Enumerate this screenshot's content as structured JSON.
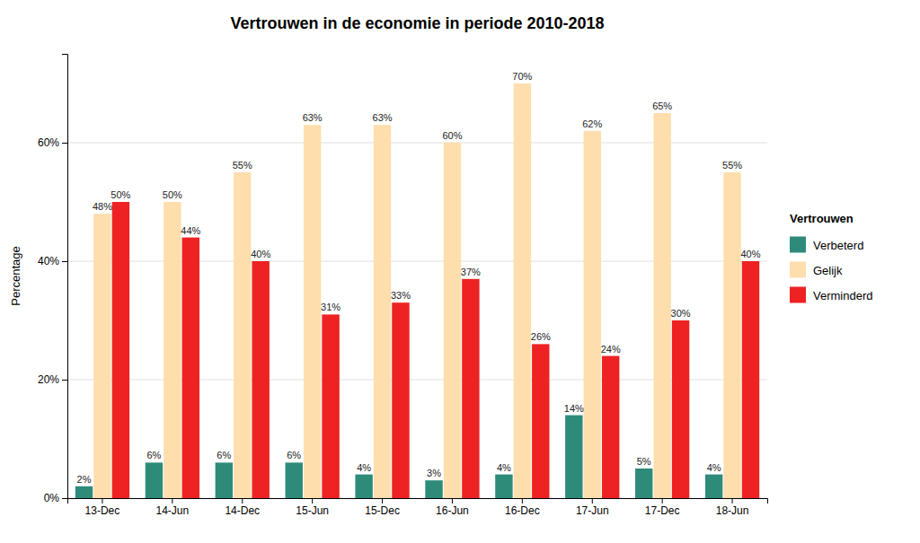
{
  "chart_data": {
    "type": "bar",
    "title": "Vertrouwen in de economie in periode 2010-2018",
    "y_label": "Percentage",
    "categories": [
      "13-Dec",
      "14-Jun",
      "14-Dec",
      "15-Jun",
      "15-Dec",
      "16-Jun",
      "16-Dec",
      "17-Jun",
      "17-Dec",
      "18-Jun"
    ],
    "series": [
      {
        "name": "Verbeterd",
        "color": "#2E8B7A",
        "values": [
          2,
          6,
          6,
          6,
          4,
          3,
          4,
          14,
          5,
          4
        ],
        "value_labels": [
          "2%",
          "6%",
          "6%",
          "6%",
          "4%",
          "3%",
          "4%",
          "14%",
          "5%",
          "4%"
        ]
      },
      {
        "name": "Gelijk",
        "color": "#FFDEAD",
        "values": [
          48,
          50,
          55,
          63,
          63,
          60,
          70,
          62,
          65,
          55
        ],
        "value_labels": [
          "48%",
          "50%",
          "55%",
          "63%",
          "63%",
          "60%",
          "70%",
          "62%",
          "65%",
          "55%"
        ]
      },
      {
        "name": "Verminderd",
        "color": "#EE2222",
        "values": [
          50,
          44,
          40,
          31,
          33,
          37,
          26,
          24,
          30,
          40
        ],
        "value_labels": [
          "50%",
          "44%",
          "40%",
          "31%",
          "33%",
          "37%",
          "26%",
          "24%",
          "30%",
          "40%"
        ]
      }
    ],
    "legend_title": "Vertrouwen",
    "ylim": [
      0,
      75
    ],
    "yticks": [
      {
        "value": 0,
        "label": "0%"
      },
      {
        "value": 20,
        "label": "20%"
      },
      {
        "value": 40,
        "label": "40%"
      },
      {
        "value": 60,
        "label": "60%"
      }
    ],
    "grid": true,
    "legend": "right",
    "data_labels": true
  }
}
